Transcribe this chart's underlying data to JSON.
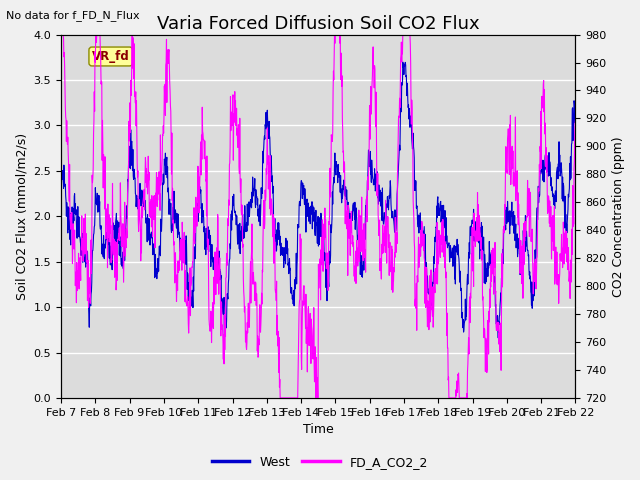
{
  "title": "Varia Forced Diffusion Soil CO2 Flux",
  "no_data_text": "No data for f_FD_N_Flux",
  "xlabel": "Time",
  "ylabel_left": "Soil CO2 Flux (mmol/m2/s)",
  "ylabel_right": "CO2 Concentration (ppm)",
  "ylim_left": [
    0.0,
    4.0
  ],
  "ylim_right": [
    720,
    980
  ],
  "x_tick_labels": [
    "Feb 7",
    "Feb 8",
    "Feb 9",
    "Feb 10",
    "Feb 11",
    "Feb 12",
    "Feb 13",
    "Feb 14",
    "Feb 15",
    "Feb 16",
    "Feb 17",
    "Feb 18",
    "Feb 19",
    "Feb 20",
    "Feb 21",
    "Feb 22"
  ],
  "legend_entries": [
    "West",
    "FD_A_CO2_2"
  ],
  "legend_colors": [
    "#0000cd",
    "#ff00ff"
  ],
  "line_color_west": "#0000cd",
  "line_color_co2": "#ff00ff",
  "vr_fd_box_color": "#ffff99",
  "vr_fd_text_color": "#8b0000",
  "vr_fd_label": "VR_fd",
  "background_color": "#dcdcdc",
  "fig_background": "#f0f0f0",
  "grid_color": "#ffffff",
  "title_fontsize": 13,
  "label_fontsize": 9,
  "tick_fontsize": 8,
  "n_days": 15,
  "n_per_day": 96
}
